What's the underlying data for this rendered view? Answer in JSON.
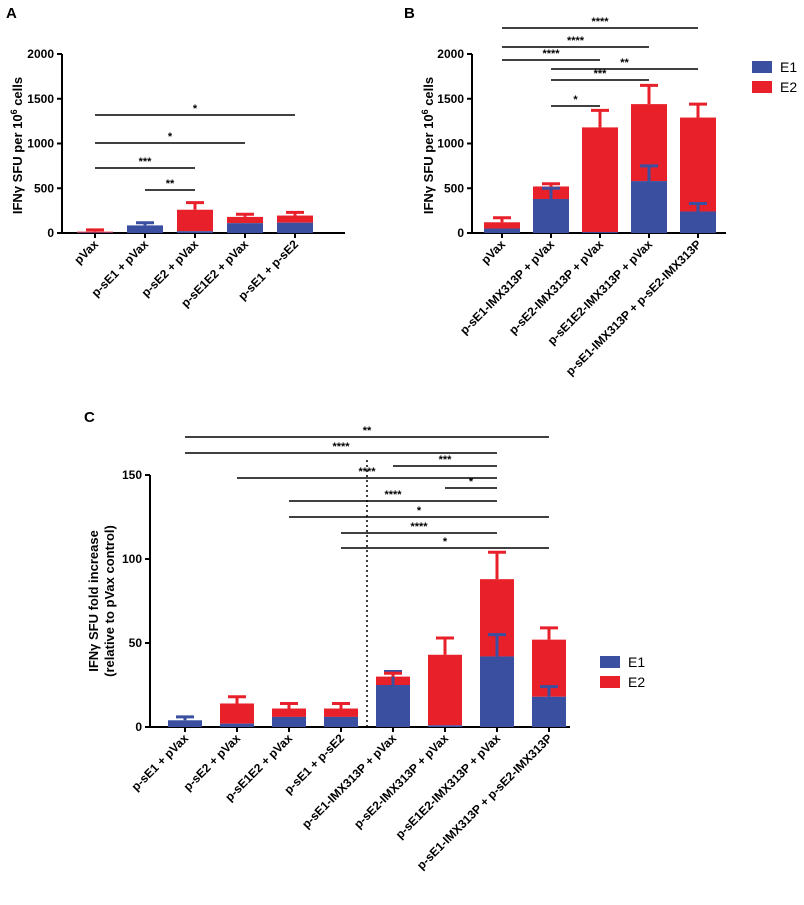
{
  "colors": {
    "E1": "#3a4fa0",
    "E2": "#e8202a",
    "axis": "#000000"
  },
  "chart_data": [
    {
      "panel": "A",
      "type": "bar",
      "stacked": true,
      "ylabel_main": "IFNγ SFU per 10",
      "ylabel_sup": "6",
      "ylabel_tail": " cells",
      "ylim": [
        0,
        2000
      ],
      "yticks": [
        0,
        500,
        1000,
        1500,
        2000
      ],
      "categories": [
        "pVax",
        "p-sE1 + pVax",
        "p-sE2 + pVax",
        "p-sE1E2 + pVax",
        "p-sE1 + p-sE2"
      ],
      "series": [
        {
          "name": "E1",
          "values": [
            5,
            85,
            20,
            110,
            115
          ],
          "errors": [
            0,
            30,
            0,
            0,
            0
          ]
        },
        {
          "name": "E2",
          "values": [
            10,
            0,
            240,
            70,
            80
          ],
          "errors": [
            20,
            0,
            80,
            30,
            35
          ]
        }
      ],
      "significance": [
        {
          "from": 0,
          "to": 4,
          "label": "*"
        },
        {
          "from": 0,
          "to": 3,
          "label": "*"
        },
        {
          "from": 0,
          "to": 2,
          "label": "***"
        },
        {
          "from": 1,
          "to": 2,
          "label": "**"
        }
      ]
    },
    {
      "panel": "B",
      "type": "bar",
      "stacked": true,
      "ylabel_main": "IFNγ SFU per 10",
      "ylabel_sup": "6",
      "ylabel_tail": " cells",
      "ylim": [
        0,
        2000
      ],
      "yticks": [
        0,
        500,
        1000,
        1500,
        2000
      ],
      "categories": [
        "pVax",
        "p-sE1-IMX313P + pVax",
        "p-sE2-IMX313P + pVax",
        "p-sE1E2-IMX313P + pVax",
        "p-sE1-IMX313P + p-sE2-IMX313P"
      ],
      "series": [
        {
          "name": "E1",
          "values": [
            50,
            380,
            10,
            580,
            240
          ],
          "errors": [
            0,
            120,
            0,
            170,
            90
          ]
        },
        {
          "name": "E2",
          "values": [
            70,
            140,
            1170,
            860,
            1050
          ],
          "errors": [
            50,
            30,
            190,
            210,
            150
          ]
        }
      ],
      "legend": [
        "E1",
        "E2"
      ],
      "significance": [
        {
          "from": 0,
          "to": 4,
          "label": "****"
        },
        {
          "from": 0,
          "to": 3,
          "label": "****"
        },
        {
          "from": 0,
          "to": 2,
          "label": "****"
        },
        {
          "from": 1,
          "to": 4,
          "label": "**"
        },
        {
          "from": 1,
          "to": 3,
          "label": "***"
        },
        {
          "from": 1,
          "to": 2,
          "label": "*"
        }
      ]
    },
    {
      "panel": "C",
      "type": "bar",
      "stacked": true,
      "ylabel_line1": "IFNγ SFU fold increase",
      "ylabel_line2": "(relative to pVax control)",
      "ylim": [
        0,
        150
      ],
      "yticks": [
        0,
        50,
        100,
        150
      ],
      "categories": [
        "p-sE1 + pVax",
        "p-sE2 + pVax",
        "p-sE1E2 + pVax",
        "p-sE1 + p-sE2",
        "p-sE1-IMX313P + pVax",
        "p-sE2-IMX313P + pVax",
        "p-sE1E2-IMX313P + pVax",
        "p-sE1-IMX313P + p-sE2-IMX313P"
      ],
      "series": [
        {
          "name": "E1",
          "values": [
            4,
            2,
            6,
            6,
            25,
            1,
            42,
            18
          ],
          "errors": [
            2,
            0,
            0,
            0,
            8,
            0,
            13,
            6
          ]
        },
        {
          "name": "E2",
          "values": [
            0,
            12,
            5,
            5,
            5,
            42,
            46,
            34
          ],
          "errors": [
            0,
            4,
            3,
            3,
            2,
            10,
            16,
            7
          ]
        }
      ],
      "legend": [
        "E1",
        "E2"
      ],
      "divider_after": 3,
      "significance": [
        {
          "from": 0,
          "to": 7,
          "label": "**"
        },
        {
          "from": 0,
          "to": 6,
          "label": "****"
        },
        {
          "from": 1,
          "to": 6,
          "label": "****"
        },
        {
          "from": 4,
          "to": 6,
          "label": "***"
        },
        {
          "from": 5,
          "to": 6,
          "label": "*"
        },
        {
          "from": 2,
          "to": 6,
          "label": "****"
        },
        {
          "from": 2,
          "to": 7,
          "label": "*"
        },
        {
          "from": 3,
          "to": 6,
          "label": "****"
        },
        {
          "from": 3,
          "to": 7,
          "label": "*"
        }
      ]
    }
  ]
}
